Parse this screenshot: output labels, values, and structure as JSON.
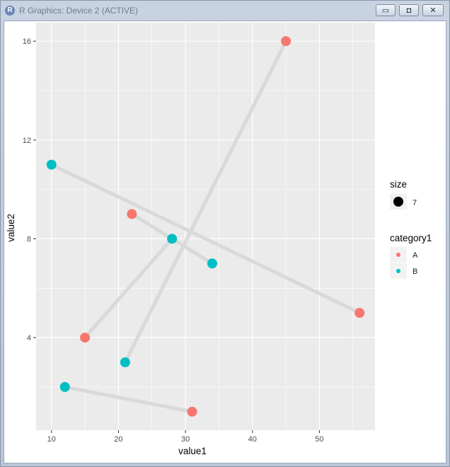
{
  "window": {
    "title": "R Graphics: Device 2 (ACTIVE)",
    "app_icon": "R",
    "controls": [
      "minimize-icon",
      "restore-icon",
      "close-icon"
    ]
  },
  "chart_data": {
    "type": "scatter",
    "xlabel": "value1",
    "ylabel": "value2",
    "xlim": [
      7.7,
      58.3
    ],
    "ylim": [
      0.25,
      16.75
    ],
    "x_ticks": [
      10,
      20,
      30,
      40,
      50
    ],
    "y_ticks": [
      4,
      8,
      12,
      16
    ],
    "grid": true,
    "panel_background": "#ebebeb",
    "segment_color": "#d9d9d9",
    "colors": {
      "A": "#f8766d",
      "B": "#00bfc4"
    },
    "points": [
      {
        "x": 45,
        "y": 16,
        "category": "A"
      },
      {
        "x": 56,
        "y": 5,
        "category": "A"
      },
      {
        "x": 22,
        "y": 9,
        "category": "A"
      },
      {
        "x": 15,
        "y": 4,
        "category": "A"
      },
      {
        "x": 31,
        "y": 1,
        "category": "A"
      },
      {
        "x": 10,
        "y": 11,
        "category": "B"
      },
      {
        "x": 28,
        "y": 8,
        "category": "B"
      },
      {
        "x": 34,
        "y": 7,
        "category": "B"
      },
      {
        "x": 21,
        "y": 3,
        "category": "B"
      },
      {
        "x": 12,
        "y": 2,
        "category": "B"
      }
    ],
    "segments": [
      {
        "x1": 10,
        "y1": 11,
        "x2": 56,
        "y2": 5
      },
      {
        "x1": 22,
        "y1": 9,
        "x2": 34,
        "y2": 7
      },
      {
        "x1": 15,
        "y1": 4,
        "x2": 28,
        "y2": 8
      },
      {
        "x1": 21,
        "y1": 3,
        "x2": 45,
        "y2": 16
      },
      {
        "x1": 12,
        "y1": 2,
        "x2": 31,
        "y2": 1
      }
    ],
    "legend": {
      "placement": "right",
      "size_title": "size",
      "size_value": "7",
      "color_title": "category1",
      "categories": [
        "A",
        "B"
      ]
    }
  }
}
